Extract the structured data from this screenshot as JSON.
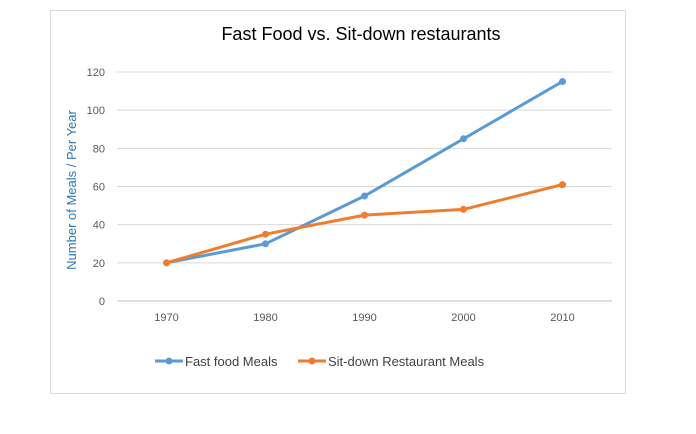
{
  "chart_data": {
    "type": "line",
    "title": "Fast Food vs. Sit-down restaurants",
    "xlabel": "",
    "ylabel": "Number of Meals / Per Year",
    "x": [
      "1970",
      "1980",
      "1990",
      "2000",
      "2010"
    ],
    "ylim": [
      0,
      120
    ],
    "yticks": [
      0,
      20,
      40,
      60,
      80,
      100,
      120
    ],
    "grid": true,
    "legend_position": "bottom",
    "series": [
      {
        "name": "Fast food Meals",
        "color": "#5b9bd5",
        "values": [
          20,
          30,
          55,
          85,
          115
        ]
      },
      {
        "name": "Sit-down Restaurant Meals",
        "color": "#ed7d31",
        "values": [
          20,
          35,
          45,
          48,
          61
        ]
      }
    ]
  },
  "ylabel_color": "#2e75b6"
}
